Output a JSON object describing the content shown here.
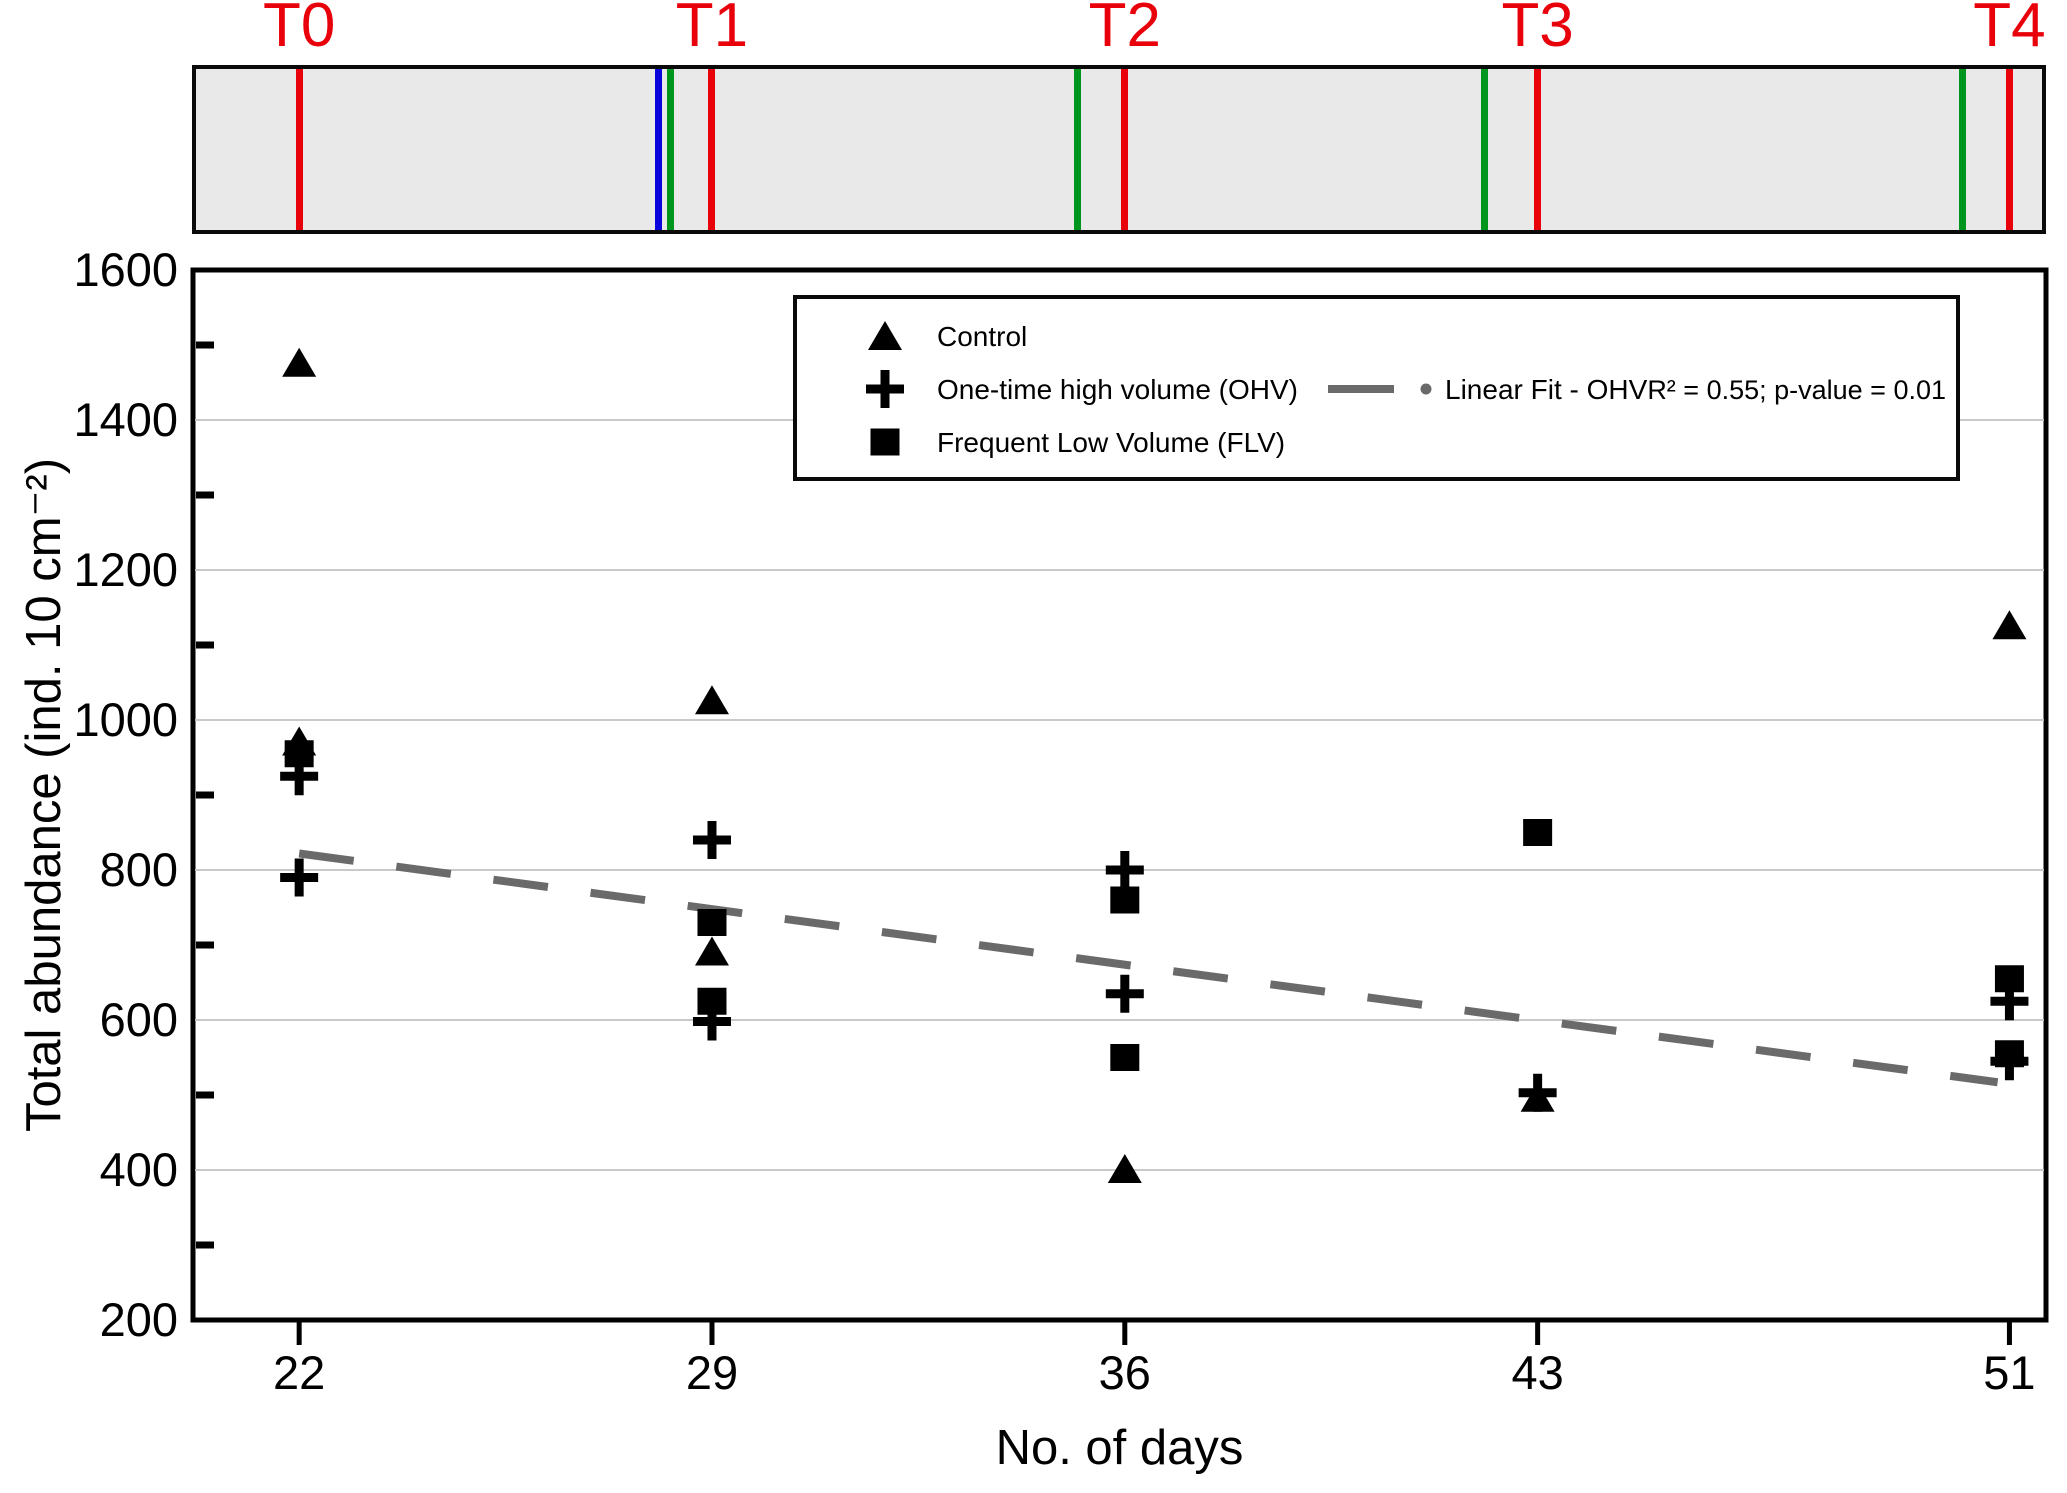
{
  "page": {
    "background": "#ffffff"
  },
  "colors": {
    "sampling_red": "#e8000b",
    "flv_green": "#00961e",
    "ohv_blue": "#0b04dd",
    "bar_fill": "#e9e9e9",
    "grid_gray": "#c9c9c9",
    "fit_gray": "#6a6a6a",
    "marker_black": "#000000"
  },
  "timeline": {
    "labels": [
      {
        "text": "T0",
        "day": 22
      },
      {
        "text": "T1",
        "day": 29
      },
      {
        "text": "T2",
        "day": 36
      },
      {
        "text": "T3",
        "day": 43
      },
      {
        "text": "T4",
        "day": 51
      }
    ],
    "events": [
      {
        "kind": "sampling",
        "day": 22
      },
      {
        "kind": "ohv-application",
        "day": 28.1
      },
      {
        "kind": "flv-irrigation",
        "day": 28.3
      },
      {
        "kind": "sampling",
        "day": 29
      },
      {
        "kind": "flv-irrigation",
        "day": 35.2
      },
      {
        "kind": "sampling",
        "day": 36
      },
      {
        "kind": "flv-irrigation",
        "day": 42.1
      },
      {
        "kind": "sampling",
        "day": 43
      },
      {
        "kind": "flv-irrigation",
        "day": 50.2
      },
      {
        "kind": "sampling",
        "day": 51
      }
    ]
  },
  "chart_data": {
    "type": "scatter",
    "title": "",
    "xlabel": "No. of days",
    "ylabel": "Total abundance (ind. 10 cm⁻²)",
    "xlim": [
      20.2,
      51.62
    ],
    "ylim": [
      200,
      1600
    ],
    "x_ticks": [
      22,
      29,
      36,
      43,
      51
    ],
    "y_major_ticks": [
      200,
      400,
      600,
      800,
      1000,
      1200,
      1400,
      1600
    ],
    "y_minor_ticks": [
      300,
      500,
      700,
      900,
      1100,
      1300,
      1500
    ],
    "grid": "horizontal-major-only",
    "legend_position": "top-center",
    "series": [
      {
        "name": "Control",
        "marker": "triangle",
        "points": [
          [
            22,
            1475
          ],
          [
            22,
            970
          ],
          [
            29,
            1025
          ],
          [
            29,
            690
          ],
          [
            36,
            400
          ],
          [
            43,
            495
          ],
          [
            51,
            1125
          ]
        ]
      },
      {
        "name": "One-time high volume (OHV)",
        "marker": "plus",
        "points": [
          [
            22,
            925
          ],
          [
            22,
            790
          ],
          [
            29,
            840
          ],
          [
            29,
            598
          ],
          [
            36,
            800
          ],
          [
            36,
            635
          ],
          [
            43,
            503
          ],
          [
            51,
            625
          ],
          [
            51,
            545
          ]
        ]
      },
      {
        "name": "Frequent Low Volume (FLV)",
        "marker": "square",
        "points": [
          [
            22,
            955
          ],
          [
            29,
            730
          ],
          [
            29,
            625
          ],
          [
            36,
            760
          ],
          [
            36,
            550
          ],
          [
            43,
            850
          ],
          [
            51,
            655
          ],
          [
            51,
            555
          ]
        ]
      }
    ],
    "fit_line": {
      "label": "Linear Fit - OHV",
      "stats": "R² = 0.55; p-value = 0.01",
      "x": [
        22,
        50.8
      ],
      "y": [
        822,
        517
      ],
      "r_squared": 0.55,
      "p_value": 0.01
    }
  }
}
